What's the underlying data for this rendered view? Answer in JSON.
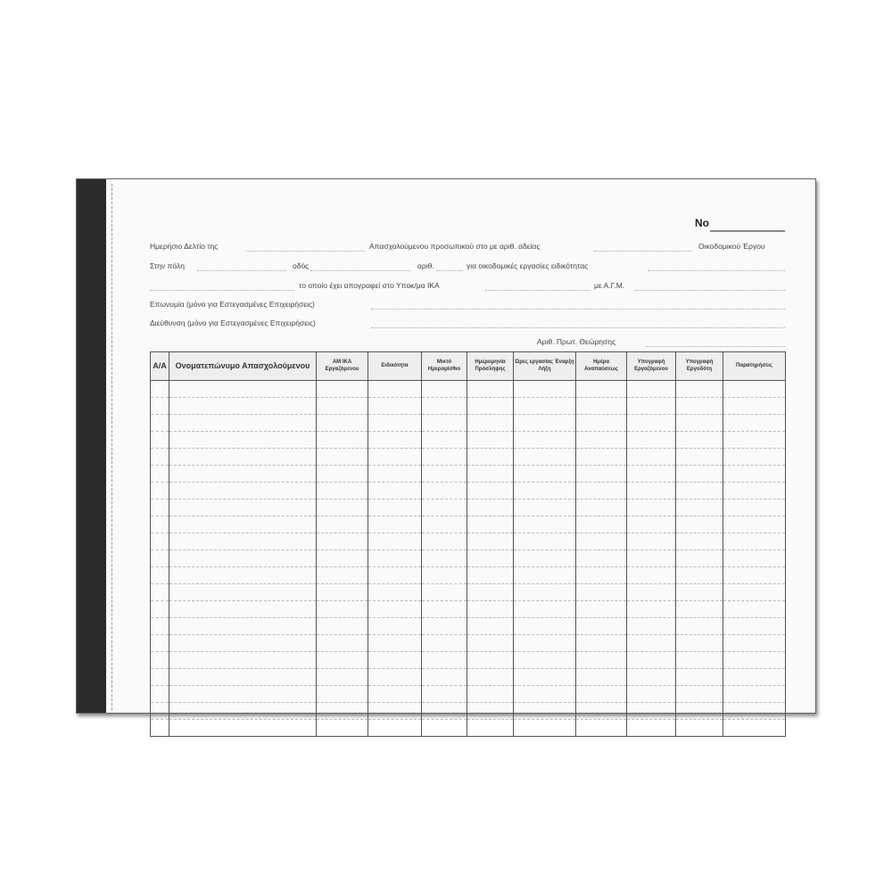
{
  "form": {
    "number_label": "No",
    "line1": {
      "a": "Ημερήσιο Δελτίο της",
      "b": "Απασχολούμενου προσωπικού στο με αριθ. αδείας",
      "c": "Οικοδομικού Έργου"
    },
    "line2": {
      "a": "Στην πόλη",
      "b": "οδός",
      "c": "αριθ.",
      "d": "για οικοδομικές εργασίες ειδικότητας"
    },
    "line3": {
      "a": "το οποίο έχει απογραφεί στο Υποκ/μα ΙΚΑ",
      "b": "με Α.Γ.Μ."
    },
    "line4": "Επωνυμία (μόνο για Εστεγασμένες Επιχειρήσεις)",
    "line5": "Διεύθυνση (μόνο για Εστεγασμένες Επιχειρήσεις)",
    "line6": "Αριθ. Πρωτ. Θεώρησης"
  },
  "table": {
    "columns": [
      "A/A",
      "Ονοματεπώνυμο Απασχολούμενου",
      "ΑΜ ΙΚΑ Εργαζόμενου",
      "Ειδικότητα",
      "Μικτό Ημερομίσθιο",
      "Ημερομηνία Πρόσληψης",
      "Ώρες εργασίας Έναρξη Λήξη",
      "Ημέρα Αναπαύσεως",
      "Υπογραφή Εργαζόμενου",
      "Υπογραφή Εργοδότη",
      "Παρατηρήσεις"
    ],
    "row_count": 21
  }
}
